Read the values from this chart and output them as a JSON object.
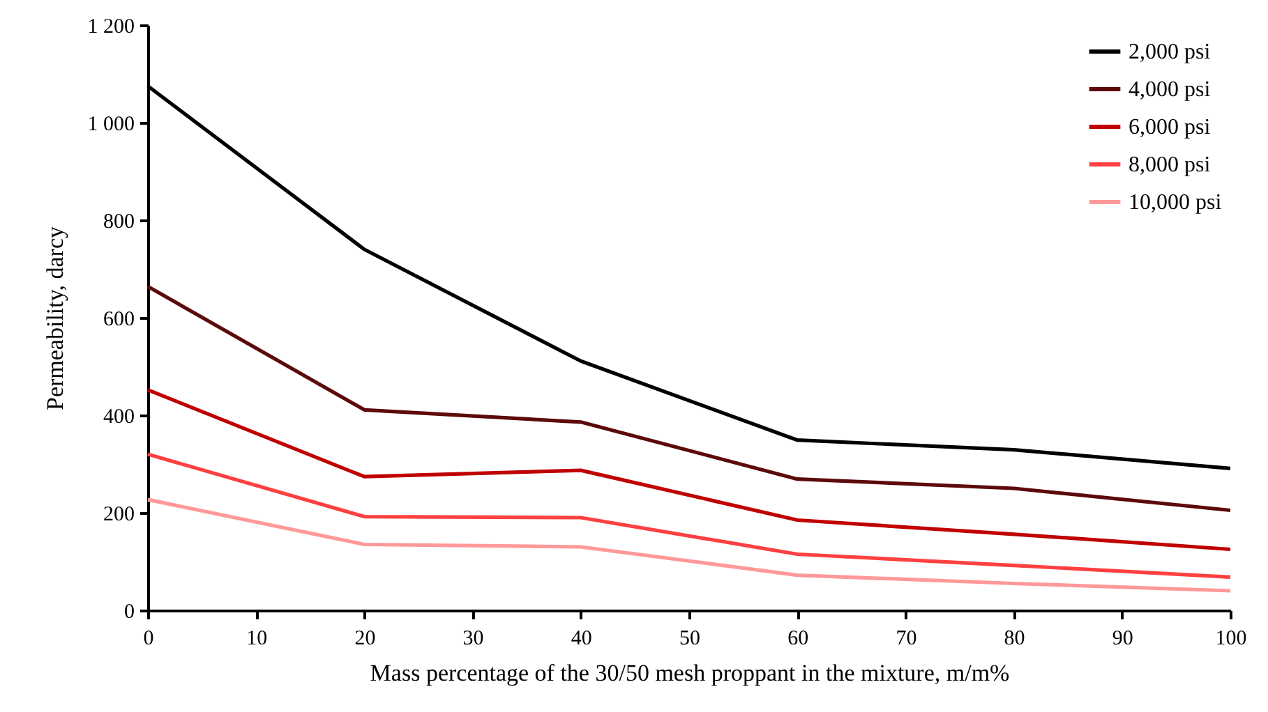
{
  "chart_data": {
    "type": "line",
    "xlabel": "Mass percentage  of the 30/50 mesh proppant in the mixture, m/m%",
    "ylabel": "Permeability, darcy",
    "x": [
      0,
      20,
      40,
      60,
      80,
      100
    ],
    "series": [
      {
        "name": "2,000 psi",
        "color": "#000000",
        "values": [
          1075,
          740,
          511,
          349,
          329,
          291
        ]
      },
      {
        "name": "4,000 psi",
        "color": "#5c0a0a",
        "values": [
          664,
          411,
          386,
          269,
          250,
          205
        ]
      },
      {
        "name": "6,000 psi",
        "color": "#c00000",
        "values": [
          452,
          274,
          287,
          185,
          156,
          125
        ]
      },
      {
        "name": "8,000 psi",
        "color": "#ff4040",
        "values": [
          320,
          192,
          190,
          115,
          92,
          68
        ]
      },
      {
        "name": "10,000 psi",
        "color": "#ff9999",
        "values": [
          227,
          135,
          130,
          72,
          55,
          40
        ]
      }
    ],
    "xlim": [
      0,
      100
    ],
    "xticks": [
      0,
      10,
      20,
      30,
      40,
      50,
      60,
      70,
      80,
      90,
      100
    ],
    "ylim": [
      0,
      1200
    ],
    "yticks": [
      0,
      200,
      400,
      600,
      800,
      {
        "value": 1000,
        "label": "1 000"
      },
      {
        "value": 1200,
        "label": "1 200"
      }
    ],
    "grid": false,
    "legend": "top right",
    "marker": "none",
    "line_style": "solid"
  }
}
